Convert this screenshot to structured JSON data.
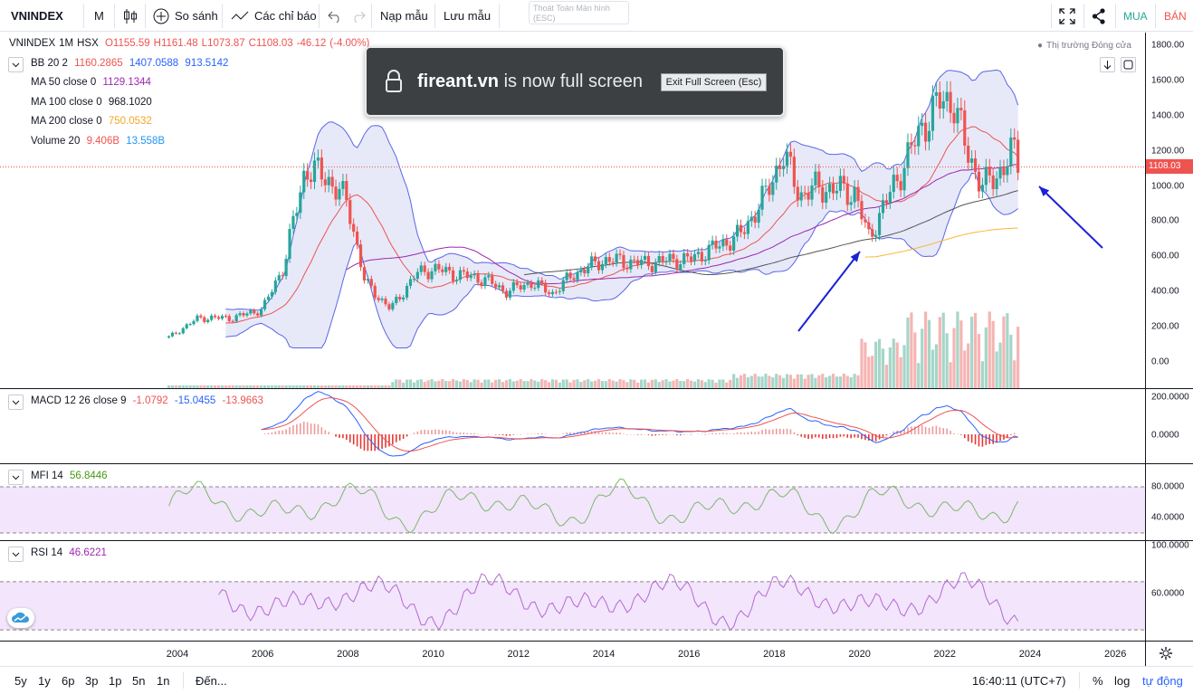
{
  "toolbar": {
    "symbol": "VNINDEX",
    "interval": "M",
    "compare_label": "So sánh",
    "indicators_label": "Các chỉ báo",
    "template_label": "Nạp mẫu",
    "save_template_label": "Lưu mẫu",
    "fullscreen_hint_line1": "Thoát Toàn Màn hình",
    "fullscreen_hint_line2": "(ESC)",
    "buy_label": "MUA",
    "sell_label": "BÁN"
  },
  "toast": {
    "site": "fireant.vn",
    "message": "is now full screen",
    "exit_label": "Exit Full Screen (Esc)"
  },
  "main_legend": {
    "symbol": "VNINDEX",
    "interval": "1M",
    "exchange": "HSX",
    "open": "O1155.59",
    "high": "H1161.48",
    "low": "L1073.87",
    "close": "C1108.03",
    "change": "-46.12",
    "change_pct": "(-4.00%)",
    "market_status": "Thị trường Đóng cửa",
    "bb": {
      "name": "BB 20 2",
      "basis": "1160.2865",
      "upper": "1407.0588",
      "lower": "913.5142"
    },
    "ma50": {
      "name": "MA 50 close 0",
      "value": "1129.1344"
    },
    "ma100": {
      "name": "MA 100 close 0",
      "value": "968.1020"
    },
    "ma200": {
      "name": "MA 200 close 0",
      "value": "750.0532"
    },
    "volume": {
      "name": "Volume 20",
      "value": "9.406B",
      "ma": "13.558B"
    }
  },
  "main_scale": [
    "1800.00",
    "1600.00",
    "1400.00",
    "1200.00",
    "1000.00",
    "800.00",
    "600.00",
    "400.00",
    "200.00",
    "0.00"
  ],
  "last_price_tag": "1108.03",
  "macd": {
    "name": "MACD 12 26 close 9",
    "hist": "-1.0792",
    "macd": "-15.0455",
    "signal": "-13.9663",
    "scale": [
      "200.0000",
      "0.0000"
    ]
  },
  "mfi": {
    "name": "MFI 14",
    "value": "56.8446",
    "scale": [
      "80.0000",
      "40.0000"
    ]
  },
  "rsi": {
    "name": "RSI 14",
    "value": "46.6221",
    "scale": [
      "100.0000",
      "60.0000"
    ]
  },
  "years": [
    "2004",
    "2006",
    "2008",
    "2010",
    "2012",
    "2014",
    "2016",
    "2018",
    "2020",
    "2022",
    "2024",
    "2026"
  ],
  "ranges": [
    "5y",
    "1y",
    "6p",
    "3p",
    "1p",
    "5n",
    "1n"
  ],
  "goto_label": "Đến...",
  "clock": "16:40:11 (UTC+7)",
  "pct_label": "%",
  "log_label": "log",
  "auto_label": "tự động",
  "colors": {
    "up": "#26a69a",
    "down": "#ef5350",
    "bb_fill": "#dfe1f5",
    "bb_line": "#5a66e6",
    "ma50": "#9c27b0",
    "ma100": "#555555",
    "ma200": "#f7b733",
    "arrow": "#1a22d6"
  }
}
